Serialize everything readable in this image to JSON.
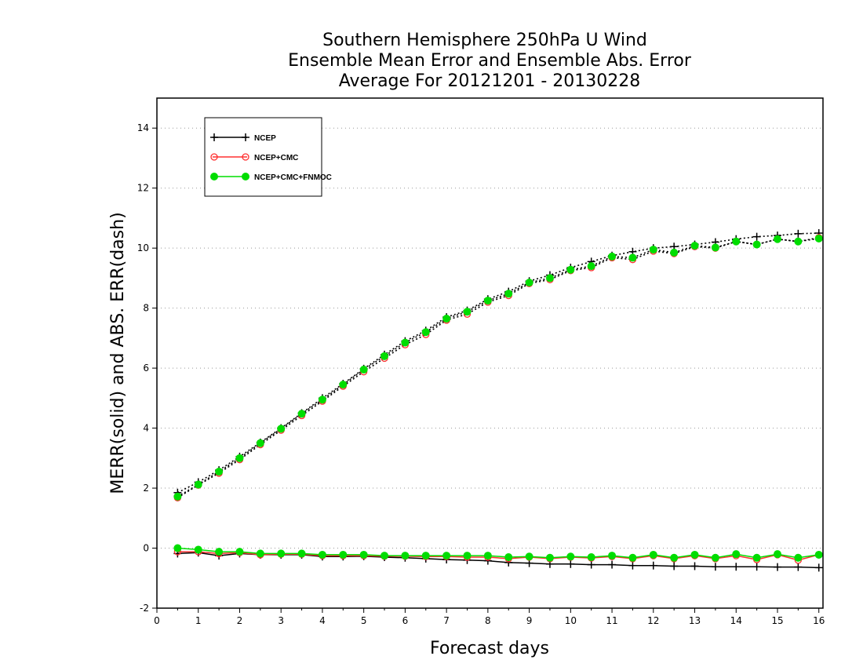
{
  "chart_data": {
    "type": "line",
    "title": [
      "Southern Hemisphere 250hPa U Wind",
      "Ensemble Mean Error and Ensemble Abs. Error",
      "Average For 20121201 - 20130228"
    ],
    "xlabel": "Forecast days",
    "ylabel": "MERR(solid) and ABS. ERR(dash)",
    "xlim": [
      0,
      16.1
    ],
    "ylim": [
      -2,
      15
    ],
    "xticks": [
      0,
      1,
      2,
      3,
      4,
      5,
      6,
      7,
      8,
      9,
      10,
      11,
      12,
      13,
      14,
      15,
      16
    ],
    "yticks": [
      -2,
      0,
      2,
      4,
      6,
      8,
      10,
      12,
      14
    ],
    "ytick_labels": [
      "-2",
      "0",
      "2",
      "4",
      "6",
      "8",
      "10",
      "12",
      "14"
    ],
    "grid": "horizontal dotted",
    "legend_position": "top-left",
    "x": [
      0.5,
      1,
      1.5,
      2,
      2.5,
      3,
      3.5,
      4,
      4.5,
      5,
      5.5,
      6,
      6.5,
      7,
      7.5,
      8,
      8.5,
      9,
      9.5,
      10,
      10.5,
      11,
      11.5,
      12,
      12.5,
      13,
      13.5,
      14,
      14.5,
      15,
      15.5,
      16
    ],
    "series": [
      {
        "name": "NCEP",
        "color": "#000000",
        "marker": "plus",
        "merr": [
          -0.18,
          -0.15,
          -0.25,
          -0.18,
          -0.22,
          -0.22,
          -0.22,
          -0.28,
          -0.28,
          -0.27,
          -0.3,
          -0.32,
          -0.35,
          -0.38,
          -0.4,
          -0.42,
          -0.48,
          -0.5,
          -0.53,
          -0.53,
          -0.55,
          -0.55,
          -0.58,
          -0.58,
          -0.6,
          -0.6,
          -0.62,
          -0.62,
          -0.62,
          -0.63,
          -0.63,
          -0.65
        ],
        "abserr": [
          1.85,
          2.2,
          2.6,
          3.05,
          3.52,
          4.0,
          4.5,
          5.0,
          5.48,
          5.98,
          6.45,
          6.9,
          7.25,
          7.7,
          7.92,
          8.3,
          8.55,
          8.9,
          9.1,
          9.35,
          9.55,
          9.75,
          9.88,
          10.0,
          10.05,
          10.12,
          10.2,
          10.3,
          10.38,
          10.42,
          10.48,
          10.5
        ]
      },
      {
        "name": "NCEP+CMC",
        "color": "#ff3030",
        "marker": "open-circle",
        "merr": [
          -0.12,
          -0.12,
          -0.18,
          -0.15,
          -0.22,
          -0.2,
          -0.2,
          -0.25,
          -0.25,
          -0.25,
          -0.27,
          -0.27,
          -0.28,
          -0.28,
          -0.3,
          -0.3,
          -0.35,
          -0.3,
          -0.35,
          -0.3,
          -0.33,
          -0.28,
          -0.35,
          -0.25,
          -0.35,
          -0.25,
          -0.35,
          -0.25,
          -0.38,
          -0.22,
          -0.4,
          -0.22
        ],
        "abserr": [
          1.68,
          2.1,
          2.5,
          2.95,
          3.45,
          3.93,
          4.42,
          4.9,
          5.4,
          5.88,
          6.33,
          6.78,
          7.12,
          7.6,
          7.8,
          8.2,
          8.42,
          8.82,
          8.95,
          9.25,
          9.35,
          9.68,
          9.62,
          9.9,
          9.82,
          10.05,
          10.0,
          10.22,
          10.12,
          10.3,
          10.22,
          10.35
        ]
      },
      {
        "name": "NCEP+CMC+FNMOC",
        "color": "#00dd00",
        "marker": "filled-circle",
        "merr": [
          0.0,
          -0.05,
          -0.12,
          -0.12,
          -0.18,
          -0.18,
          -0.18,
          -0.22,
          -0.22,
          -0.22,
          -0.25,
          -0.25,
          -0.25,
          -0.25,
          -0.25,
          -0.25,
          -0.3,
          -0.28,
          -0.32,
          -0.28,
          -0.3,
          -0.25,
          -0.32,
          -0.22,
          -0.32,
          -0.22,
          -0.32,
          -0.2,
          -0.32,
          -0.2,
          -0.32,
          -0.22
        ],
        "abserr": [
          1.72,
          2.12,
          2.55,
          3.0,
          3.5,
          3.98,
          4.48,
          4.95,
          5.45,
          5.95,
          6.4,
          6.85,
          7.2,
          7.65,
          7.88,
          8.25,
          8.48,
          8.85,
          9.0,
          9.28,
          9.4,
          9.72,
          9.68,
          9.95,
          9.85,
          10.08,
          10.02,
          10.22,
          10.12,
          10.3,
          10.22,
          10.32
        ]
      }
    ]
  }
}
